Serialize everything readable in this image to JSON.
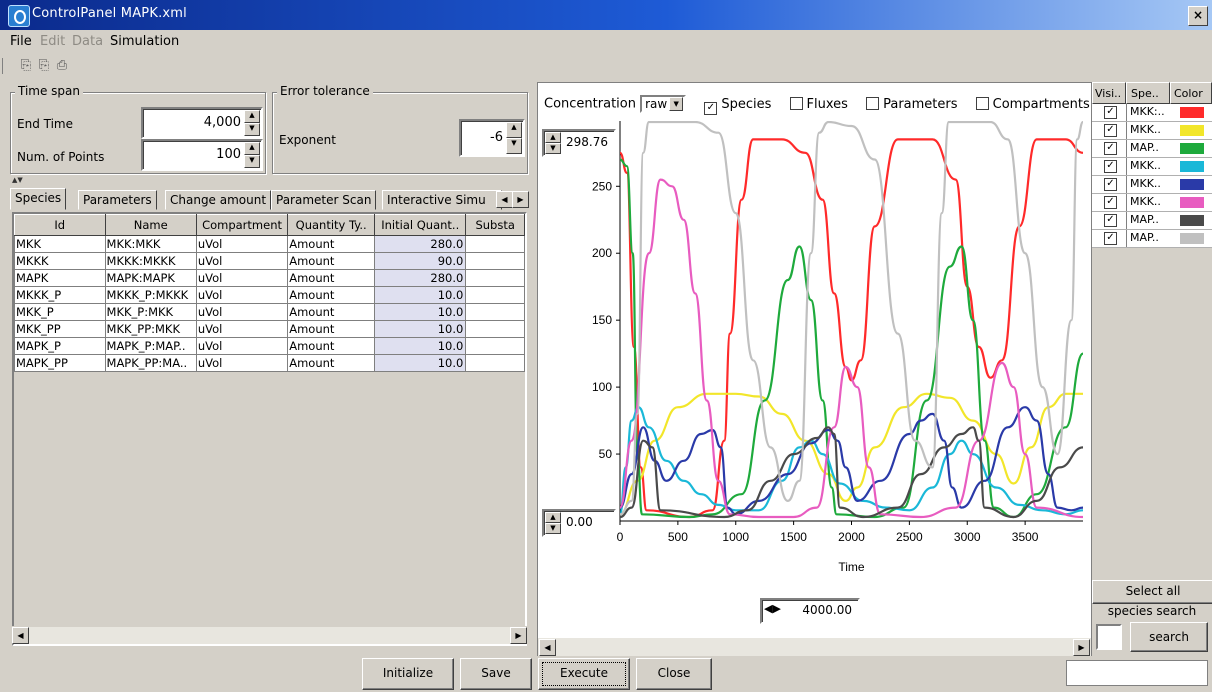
{
  "window": {
    "title": "ControlPanel MAPK.xml",
    "close_glyph": "×"
  },
  "menu": {
    "file": "File",
    "edit": "Edit",
    "data": "Data",
    "simulation": "Simulation"
  },
  "time_span": {
    "title": "Time span",
    "end_time_label": "End Time",
    "end_time_value": "4,000",
    "num_points_label": "Num. of Points",
    "num_points_value": "100"
  },
  "error_tolerance": {
    "title": "Error tolerance",
    "exponent_label": "Exponent",
    "exponent_value": "-6"
  },
  "tabs": [
    "Species",
    "Parameters",
    "Change amount",
    "Parameter Scan",
    "Interactive Simu"
  ],
  "species_table": {
    "headers": [
      "Id",
      "Name",
      "Compartment",
      "Quantity Ty..",
      "Initial Quant..",
      "Substa"
    ],
    "rows": [
      [
        "MKK",
        "MKK:MKK",
        "uVol",
        "Amount",
        "280.0",
        ""
      ],
      [
        "MKKK",
        "MKKK:MKKK",
        "uVol",
        "Amount",
        "90.0",
        ""
      ],
      [
        "MAPK",
        "MAPK:MAPK",
        "uVol",
        "Amount",
        "280.0",
        ""
      ],
      [
        "MKKK_P",
        "MKKK_P:MKKK",
        "uVol",
        "Amount",
        "10.0",
        ""
      ],
      [
        "MKK_P",
        "MKK_P:MKK",
        "uVol",
        "Amount",
        "10.0",
        ""
      ],
      [
        "MKK_PP",
        "MKK_PP:MKK",
        "uVol",
        "Amount",
        "10.0",
        ""
      ],
      [
        "MAPK_P",
        "MAPK_P:MAP..",
        "uVol",
        "Amount",
        "10.0",
        ""
      ],
      [
        "MAPK_PP",
        "MAPK_PP:MA..",
        "uVol",
        "Amount",
        "10.0",
        ""
      ]
    ]
  },
  "chart_controls": {
    "concentration_label": "Concentration",
    "concentration_value": "raw",
    "species_label": "Species",
    "fluxes_label": "Fluxes",
    "parameters_label": "Parameters",
    "compartments_label": "Compartments",
    "ymax_value": "298.76",
    "ymin_value": "0.00",
    "xmax_value": "4000.00"
  },
  "chart_data": {
    "type": "line",
    "xlabel": "Time",
    "xlim": [
      0,
      4000
    ],
    "ylim": [
      0,
      298.76
    ],
    "xticks": [
      0,
      500,
      1000,
      1500,
      2000,
      2500,
      3000,
      3500
    ],
    "yticks": [
      50,
      100,
      150,
      200,
      250
    ],
    "series": [
      {
        "color": "#ff2a2a",
        "points": [
          [
            0,
            275
          ],
          [
            60,
            260
          ],
          [
            120,
            130
          ],
          [
            180,
            40
          ],
          [
            230,
            8
          ],
          [
            600,
            3
          ],
          [
            800,
            8
          ],
          [
            900,
            60
          ],
          [
            950,
            140
          ],
          [
            1050,
            240
          ],
          [
            1150,
            285
          ],
          [
            1400,
            285
          ],
          [
            1600,
            275
          ],
          [
            1750,
            240
          ],
          [
            1850,
            170
          ],
          [
            1950,
            115
          ],
          [
            2000,
            105
          ],
          [
            2080,
            120
          ],
          [
            2200,
            220
          ],
          [
            2400,
            285
          ],
          [
            2700,
            285
          ],
          [
            2900,
            255
          ],
          [
            3000,
            175
          ],
          [
            3100,
            130
          ],
          [
            3200,
            107
          ],
          [
            3300,
            120
          ],
          [
            3450,
            220
          ],
          [
            3600,
            285
          ],
          [
            3850,
            285
          ],
          [
            4000,
            275
          ]
        ]
      },
      {
        "color": "#f2e62a",
        "points": [
          [
            0,
            5
          ],
          [
            150,
            30
          ],
          [
            300,
            60
          ],
          [
            500,
            85
          ],
          [
            750,
            95
          ],
          [
            1000,
            95
          ],
          [
            1200,
            93
          ],
          [
            1400,
            80
          ],
          [
            1600,
            60
          ],
          [
            1800,
            35
          ],
          [
            1950,
            15
          ],
          [
            2050,
            25
          ],
          [
            2200,
            55
          ],
          [
            2450,
            85
          ],
          [
            2650,
            95
          ],
          [
            2850,
            92
          ],
          [
            3050,
            75
          ],
          [
            3250,
            50
          ],
          [
            3400,
            28
          ],
          [
            3550,
            55
          ],
          [
            3700,
            85
          ],
          [
            3850,
            95
          ],
          [
            4000,
            95
          ]
        ]
      },
      {
        "color": "#1eaa3c",
        "points": [
          [
            0,
            270
          ],
          [
            60,
            265
          ],
          [
            110,
            200
          ],
          [
            150,
            50
          ],
          [
            190,
            5
          ],
          [
            600,
            3
          ],
          [
            800,
            5
          ],
          [
            1050,
            20
          ],
          [
            1250,
            90
          ],
          [
            1450,
            180
          ],
          [
            1550,
            205
          ],
          [
            1650,
            165
          ],
          [
            1750,
            90
          ],
          [
            1830,
            25
          ],
          [
            1870,
            5
          ],
          [
            2200,
            3
          ],
          [
            2450,
            10
          ],
          [
            2650,
            90
          ],
          [
            2850,
            190
          ],
          [
            2950,
            205
          ],
          [
            3050,
            150
          ],
          [
            3150,
            60
          ],
          [
            3230,
            10
          ],
          [
            3400,
            3
          ],
          [
            3600,
            20
          ],
          [
            3850,
            70
          ],
          [
            4000,
            125
          ]
        ]
      },
      {
        "color": "#1ab8d8",
        "points": [
          [
            0,
            5
          ],
          [
            50,
            40
          ],
          [
            100,
            75
          ],
          [
            160,
            85
          ],
          [
            250,
            70
          ],
          [
            400,
            45
          ],
          [
            550,
            30
          ],
          [
            700,
            20
          ],
          [
            850,
            12
          ],
          [
            1000,
            8
          ],
          [
            1200,
            8
          ],
          [
            1400,
            30
          ],
          [
            1550,
            55
          ],
          [
            1650,
            60
          ],
          [
            1750,
            50
          ],
          [
            1900,
            28
          ],
          [
            2100,
            15
          ],
          [
            2300,
            10
          ],
          [
            2500,
            8
          ],
          [
            2700,
            25
          ],
          [
            2850,
            50
          ],
          [
            2950,
            60
          ],
          [
            3050,
            50
          ],
          [
            3250,
            25
          ],
          [
            3450,
            12
          ],
          [
            3650,
            8
          ],
          [
            3850,
            5
          ],
          [
            4000,
            8
          ]
        ]
      },
      {
        "color": "#2a3aa8",
        "points": [
          [
            0,
            10
          ],
          [
            100,
            35
          ],
          [
            200,
            70
          ],
          [
            300,
            45
          ],
          [
            400,
            30
          ],
          [
            550,
            45
          ],
          [
            700,
            65
          ],
          [
            800,
            68
          ],
          [
            870,
            55
          ],
          [
            930,
            10
          ],
          [
            1000,
            5
          ],
          [
            1200,
            15
          ],
          [
            1450,
            35
          ],
          [
            1650,
            58
          ],
          [
            1800,
            68
          ],
          [
            1880,
            60
          ],
          [
            1950,
            40
          ],
          [
            2050,
            15
          ],
          [
            2250,
            30
          ],
          [
            2500,
            65
          ],
          [
            2600,
            75
          ],
          [
            2700,
            80
          ],
          [
            2800,
            60
          ],
          [
            2870,
            25
          ],
          [
            2950,
            10
          ],
          [
            3150,
            30
          ],
          [
            3350,
            70
          ],
          [
            3500,
            85
          ],
          [
            3600,
            75
          ],
          [
            3700,
            35
          ],
          [
            3780,
            10
          ],
          [
            3900,
            8
          ],
          [
            4000,
            10
          ]
        ]
      },
      {
        "color": "#e85cc0",
        "points": [
          [
            0,
            10
          ],
          [
            100,
            60
          ],
          [
            250,
            200
          ],
          [
            350,
            255
          ],
          [
            450,
            250
          ],
          [
            550,
            225
          ],
          [
            650,
            170
          ],
          [
            750,
            90
          ],
          [
            850,
            30
          ],
          [
            950,
            5
          ],
          [
            1200,
            3
          ],
          [
            1500,
            3
          ],
          [
            1700,
            10
          ],
          [
            1850,
            70
          ],
          [
            1950,
            115
          ],
          [
            2050,
            100
          ],
          [
            2150,
            40
          ],
          [
            2250,
            5
          ],
          [
            2600,
            3
          ],
          [
            2900,
            10
          ],
          [
            3100,
            60
          ],
          [
            3300,
            118
          ],
          [
            3400,
            100
          ],
          [
            3500,
            50
          ],
          [
            3600,
            10
          ],
          [
            4000,
            3
          ]
        ]
      },
      {
        "color": "#4a4a4a",
        "points": [
          [
            0,
            3
          ],
          [
            100,
            10
          ],
          [
            200,
            60
          ],
          [
            280,
            55
          ],
          [
            350,
            8
          ],
          [
            900,
            3
          ],
          [
            1100,
            8
          ],
          [
            1300,
            30
          ],
          [
            1500,
            50
          ],
          [
            1700,
            62
          ],
          [
            1800,
            70
          ],
          [
            1850,
            65
          ],
          [
            1900,
            10
          ],
          [
            2100,
            3
          ],
          [
            2400,
            10
          ],
          [
            2600,
            35
          ],
          [
            2800,
            55
          ],
          [
            2950,
            65
          ],
          [
            3050,
            70
          ],
          [
            3100,
            60
          ],
          [
            3150,
            10
          ],
          [
            3400,
            3
          ],
          [
            3600,
            15
          ],
          [
            3800,
            40
          ],
          [
            4000,
            55
          ]
        ]
      },
      {
        "color": "#c0c0c0",
        "points": [
          [
            0,
            5
          ],
          [
            100,
            15
          ],
          [
            150,
            80
          ],
          [
            200,
            275
          ],
          [
            250,
            298
          ],
          [
            650,
            298
          ],
          [
            850,
            290
          ],
          [
            1000,
            230
          ],
          [
            1150,
            120
          ],
          [
            1300,
            55
          ],
          [
            1450,
            15
          ],
          [
            1550,
            30
          ],
          [
            1650,
            200
          ],
          [
            1720,
            290
          ],
          [
            1800,
            298
          ],
          [
            2000,
            295
          ],
          [
            2200,
            270
          ],
          [
            2400,
            140
          ],
          [
            2550,
            60
          ],
          [
            2700,
            40
          ],
          [
            2780,
            230
          ],
          [
            2840,
            298
          ],
          [
            3200,
            298
          ],
          [
            3350,
            285
          ],
          [
            3500,
            200
          ],
          [
            3650,
            100
          ],
          [
            3780,
            50
          ],
          [
            3900,
            150
          ],
          [
            3950,
            285
          ],
          [
            4000,
            298
          ]
        ]
      }
    ]
  },
  "legend": {
    "headers": [
      "Visi..",
      "Spe..",
      "Color"
    ],
    "rows": [
      {
        "species": "MKK:..",
        "color": "#ff2a2a"
      },
      {
        "species": "MKK..",
        "color": "#f2e62a"
      },
      {
        "species": "MAP..",
        "color": "#1eaa3c"
      },
      {
        "species": "MKK..",
        "color": "#1ab8d8"
      },
      {
        "species": "MKK..",
        "color": "#2a3aa8"
      },
      {
        "species": "MKK..",
        "color": "#e85cc0"
      },
      {
        "species": "MAP..",
        "color": "#4a4a4a"
      },
      {
        "species": "MAP..",
        "color": "#c0c0c0"
      }
    ],
    "select_all": "Select all",
    "species_search_label": "species search",
    "search_button": "search"
  },
  "buttons": {
    "initialize": "Initialize",
    "save": "Save",
    "execute": "Execute",
    "close": "Close"
  }
}
